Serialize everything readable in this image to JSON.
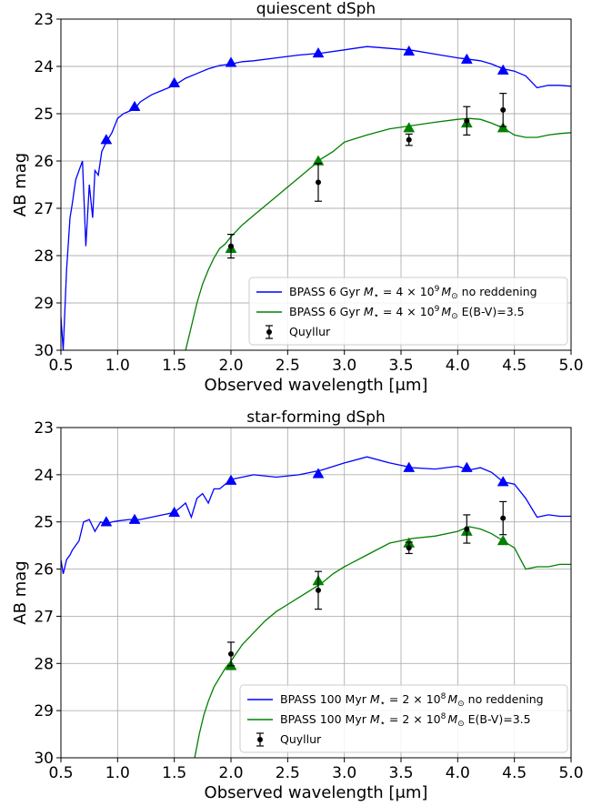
{
  "chart_data": [
    {
      "type": "line",
      "title": "quiescent dSph",
      "xlabel": "Observed wavelength [μm]",
      "ylabel": "AB mag",
      "xlim": [
        0.5,
        5.0
      ],
      "ylim": [
        30,
        23
      ],
      "y_inverted": true,
      "grid": true,
      "legend_position": "lower-right",
      "xticks": [
        "0.5",
        "1.0",
        "1.5",
        "2.0",
        "2.5",
        "3.0",
        "3.5",
        "4.0",
        "4.5",
        "5.0"
      ],
      "yticks": [
        "23",
        "24",
        "25",
        "26",
        "27",
        "28",
        "29",
        "30"
      ],
      "series": [
        {
          "name": "BPASS 6 Gyr  M⋆ = 4 × 10⁹ M⊙ no reddening",
          "color": "#0000ff",
          "kind": "line",
          "x": [
            0.5,
            0.52,
            0.55,
            0.58,
            0.6,
            0.63,
            0.66,
            0.69,
            0.72,
            0.75,
            0.78,
            0.8,
            0.83,
            0.86,
            0.9,
            0.95,
            1.0,
            1.05,
            1.1,
            1.15,
            1.2,
            1.3,
            1.4,
            1.5,
            1.6,
            1.7,
            1.8,
            1.9,
            2.0,
            2.1,
            2.2,
            2.4,
            2.6,
            2.8,
            3.0,
            3.2,
            3.4,
            3.6,
            3.8,
            4.0,
            4.1,
            4.2,
            4.3,
            4.4,
            4.5,
            4.6,
            4.7,
            4.8,
            4.9,
            5.0
          ],
          "y": [
            29.3,
            30.0,
            28.3,
            27.2,
            26.9,
            26.4,
            26.2,
            26.0,
            27.8,
            26.5,
            27.2,
            26.2,
            26.3,
            25.8,
            25.6,
            25.4,
            25.1,
            25.0,
            24.95,
            24.9,
            24.75,
            24.6,
            24.5,
            24.4,
            24.25,
            24.15,
            24.05,
            23.98,
            23.95,
            23.9,
            23.88,
            23.82,
            23.76,
            23.72,
            23.65,
            23.58,
            23.62,
            23.66,
            23.74,
            23.82,
            23.85,
            23.88,
            23.95,
            24.05,
            24.1,
            24.2,
            24.45,
            24.4,
            24.4,
            24.42
          ]
        },
        {
          "name": "BPASS 6 Gyr  M⋆ = 4 × 10⁹ M⊙ E(B-V)=3.5",
          "color": "#008000",
          "kind": "line",
          "x": [
            1.6,
            1.65,
            1.7,
            1.75,
            1.8,
            1.85,
            1.9,
            1.95,
            2.0,
            2.1,
            2.2,
            2.3,
            2.4,
            2.5,
            2.6,
            2.7,
            2.8,
            2.9,
            3.0,
            3.2,
            3.4,
            3.6,
            3.8,
            4.0,
            4.1,
            4.2,
            4.3,
            4.4,
            4.5,
            4.6,
            4.7,
            4.8,
            4.9,
            5.0
          ],
          "y": [
            30.0,
            29.5,
            29.0,
            28.6,
            28.3,
            28.05,
            27.85,
            27.75,
            27.6,
            27.35,
            27.15,
            26.95,
            26.75,
            26.55,
            26.35,
            26.15,
            25.95,
            25.8,
            25.6,
            25.45,
            25.32,
            25.25,
            25.18,
            25.12,
            25.1,
            25.12,
            25.2,
            25.3,
            25.45,
            25.5,
            25.5,
            25.45,
            25.42,
            25.4
          ]
        },
        {
          "name": "",
          "color": "#0000ff",
          "kind": "triangle",
          "x": [
            0.9,
            1.15,
            1.5,
            2.0,
            2.77,
            3.57,
            4.08,
            4.4
          ],
          "y": [
            25.55,
            24.85,
            24.35,
            23.92,
            23.72,
            23.68,
            23.85,
            24.08
          ]
        },
        {
          "name": "",
          "color": "#008000",
          "kind": "triangle",
          "x": [
            2.0,
            2.77,
            3.57,
            4.08,
            4.4
          ],
          "y": [
            27.85,
            26.0,
            25.3,
            25.2,
            25.3
          ]
        },
        {
          "name": "Quyllur",
          "color": "#000000",
          "kind": "errorbar",
          "x": [
            2.0,
            2.77,
            3.57,
            4.08,
            4.4
          ],
          "y": [
            27.8,
            26.45,
            25.55,
            25.15,
            24.92
          ],
          "yerr": [
            0.25,
            0.4,
            0.12,
            0.3,
            0.35
          ]
        }
      ],
      "legend": [
        {
          "pre": "BPASS 6 Gyr  ",
          "mass": "4 × 10",
          "exp": "9",
          "post": " no reddening",
          "color": "#0000ff",
          "kind": "line"
        },
        {
          "pre": "BPASS 6 Gyr  ",
          "mass": "4 × 10",
          "exp": "9",
          "post": " E(B-V)=3.5",
          "color": "#008000",
          "kind": "line"
        },
        {
          "label": "Quyllur",
          "color": "#000000",
          "kind": "errorbar"
        }
      ]
    },
    {
      "type": "line",
      "title": "star-forming dSph",
      "xlabel": "Observed wavelength [μm]",
      "ylabel": "AB mag",
      "xlim": [
        0.5,
        5.0
      ],
      "ylim": [
        30,
        23
      ],
      "y_inverted": true,
      "grid": true,
      "legend_position": "lower-right",
      "xticks": [
        "0.5",
        "1.0",
        "1.5",
        "2.0",
        "2.5",
        "3.0",
        "3.5",
        "4.0",
        "4.5",
        "5.0"
      ],
      "yticks": [
        "23",
        "24",
        "25",
        "26",
        "27",
        "28",
        "29",
        "30"
      ],
      "series": [
        {
          "name": "BPASS 100 Myr  M⋆ = 2 × 10⁸ M⊙ no reddening",
          "color": "#0000ff",
          "kind": "line",
          "x": [
            0.5,
            0.52,
            0.55,
            0.58,
            0.6,
            0.63,
            0.66,
            0.7,
            0.75,
            0.8,
            0.85,
            0.9,
            0.95,
            1.0,
            1.1,
            1.2,
            1.3,
            1.4,
            1.5,
            1.55,
            1.6,
            1.65,
            1.7,
            1.75,
            1.8,
            1.85,
            1.9,
            1.95,
            2.0,
            2.1,
            2.2,
            2.4,
            2.6,
            2.8,
            3.0,
            3.2,
            3.4,
            3.6,
            3.8,
            4.0,
            4.1,
            4.2,
            4.3,
            4.4,
            4.5,
            4.6,
            4.7,
            4.8,
            4.9,
            5.0
          ],
          "y": [
            25.8,
            26.1,
            25.8,
            25.7,
            25.6,
            25.5,
            25.4,
            25.0,
            24.95,
            25.2,
            25.0,
            25.05,
            25.0,
            24.98,
            24.95,
            24.95,
            24.9,
            24.85,
            24.8,
            24.7,
            24.6,
            24.9,
            24.5,
            24.4,
            24.6,
            24.3,
            24.3,
            24.2,
            24.1,
            24.05,
            24.0,
            24.05,
            24.0,
            23.9,
            23.75,
            23.62,
            23.75,
            23.85,
            23.88,
            23.82,
            23.9,
            23.85,
            23.95,
            24.15,
            24.2,
            24.5,
            24.9,
            24.85,
            24.88,
            24.88
          ]
        },
        {
          "name": "BPASS 100 Myr  M⋆ = 2 × 10⁸ M⊙ E(B-V)=3.5",
          "color": "#008000",
          "kind": "line",
          "x": [
            1.68,
            1.72,
            1.76,
            1.8,
            1.85,
            1.9,
            1.95,
            2.0,
            2.1,
            2.2,
            2.3,
            2.4,
            2.5,
            2.6,
            2.7,
            2.8,
            2.9,
            3.0,
            3.2,
            3.4,
            3.6,
            3.8,
            4.0,
            4.1,
            4.2,
            4.3,
            4.4,
            4.5,
            4.6,
            4.7,
            4.8,
            4.9,
            5.0
          ],
          "y": [
            30.0,
            29.5,
            29.1,
            28.8,
            28.5,
            28.3,
            28.1,
            27.95,
            27.6,
            27.35,
            27.1,
            26.9,
            26.75,
            26.6,
            26.45,
            26.3,
            26.1,
            25.95,
            25.7,
            25.45,
            25.35,
            25.3,
            25.2,
            25.1,
            25.15,
            25.25,
            25.4,
            25.55,
            26.0,
            25.95,
            25.95,
            25.9,
            25.9
          ]
        },
        {
          "name": "",
          "color": "#0000ff",
          "kind": "triangle",
          "x": [
            0.9,
            1.15,
            1.5,
            2.0,
            2.77,
            3.57,
            4.08,
            4.4
          ],
          "y": [
            25.0,
            24.95,
            24.8,
            24.12,
            23.98,
            23.85,
            23.85,
            24.15
          ]
        },
        {
          "name": "",
          "color": "#008000",
          "kind": "triangle",
          "x": [
            2.0,
            2.77,
            3.57,
            4.08,
            4.4
          ],
          "y": [
            28.05,
            26.25,
            25.45,
            25.2,
            25.4
          ]
        },
        {
          "name": "Quyllur",
          "color": "#000000",
          "kind": "errorbar",
          "x": [
            2.0,
            2.77,
            3.57,
            4.08,
            4.4
          ],
          "y": [
            27.8,
            26.45,
            25.55,
            25.15,
            24.92
          ],
          "yerr": [
            0.25,
            0.4,
            0.12,
            0.3,
            0.35
          ]
        }
      ],
      "legend": [
        {
          "pre": "BPASS 100 Myr  ",
          "mass": "2 × 10",
          "exp": "8",
          "post": " no reddening",
          "color": "#0000ff",
          "kind": "line"
        },
        {
          "pre": "BPASS 100 Myr  ",
          "mass": "2 × 10",
          "exp": "8",
          "post": " E(B-V)=3.5",
          "color": "#008000",
          "kind": "line"
        },
        {
          "label": "Quyllur",
          "color": "#000000",
          "kind": "errorbar"
        }
      ]
    }
  ]
}
